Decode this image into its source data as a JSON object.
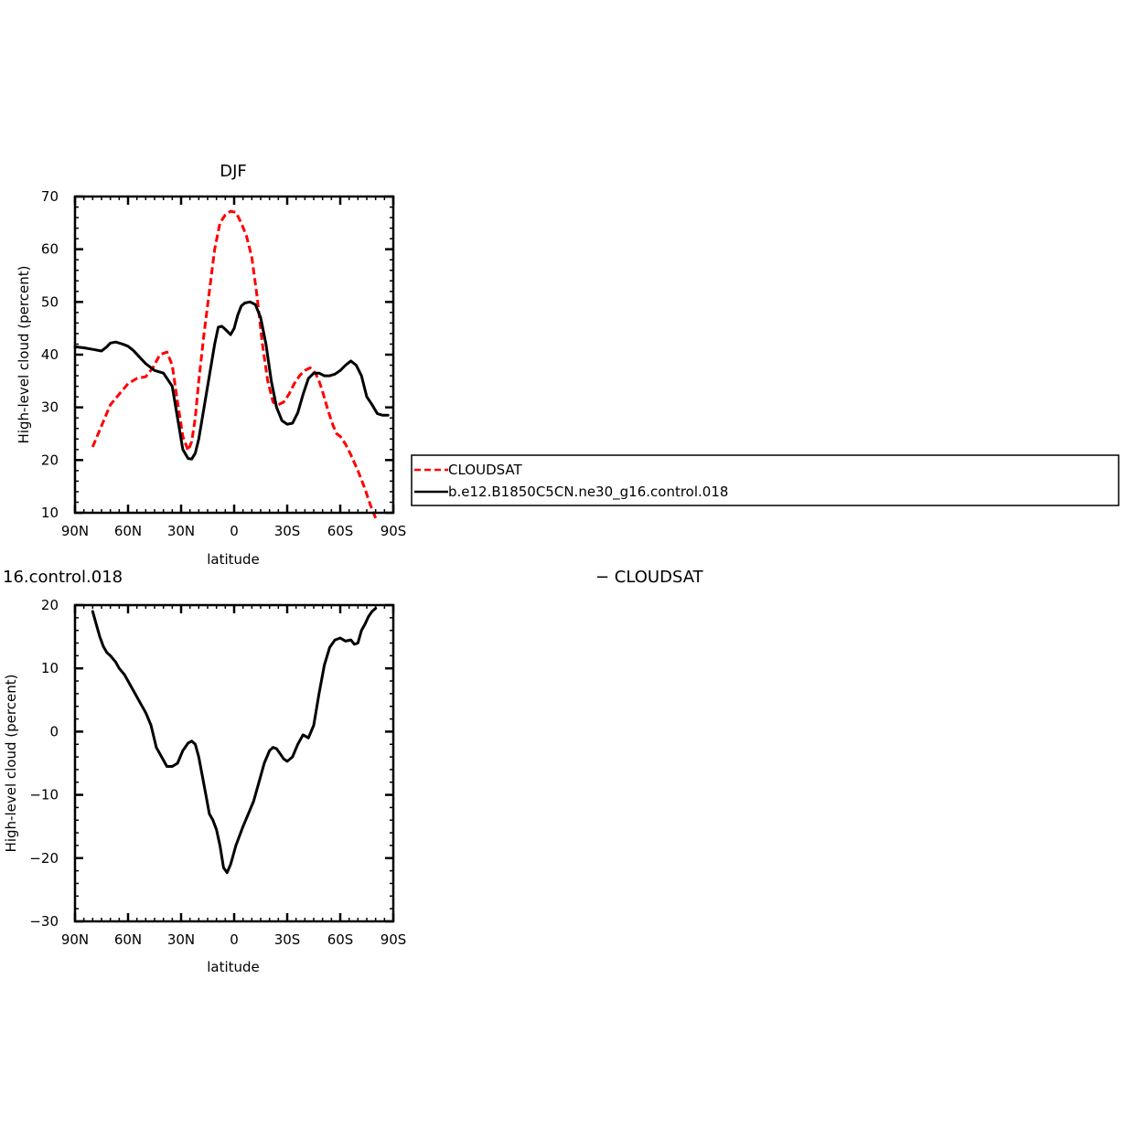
{
  "chart_data": [
    {
      "type": "line",
      "title": "DJF",
      "xlabel": "latitude",
      "ylabel": "High-level cloud (percent)",
      "xlim": [
        90,
        -90
      ],
      "ylim": [
        10,
        70
      ],
      "x_ticks": [
        90,
        60,
        30,
        0,
        -30,
        -60,
        -90
      ],
      "x_tick_labels": [
        "90N",
        "60N",
        "30N",
        "0",
        "30S",
        "60S",
        "90S"
      ],
      "y_ticks": [
        10,
        20,
        30,
        40,
        50,
        60,
        70
      ],
      "y_tick_labels": [
        "10",
        "20",
        "30",
        "40",
        "50",
        "60",
        "70"
      ],
      "grid": false,
      "legend": "right, boxed",
      "series": [
        {
          "name": "CLOUDSAT",
          "color": "#ff0000",
          "style": "dashed",
          "x": [
            80,
            75,
            70,
            65,
            60,
            55,
            50,
            46,
            42,
            38,
            35,
            32,
            29,
            26,
            24,
            22,
            20,
            17,
            14,
            11,
            8,
            5,
            2,
            -1,
            -4,
            -7,
            -10,
            -13,
            -16,
            -19,
            -22,
            -25,
            -28,
            -31,
            -34,
            -37,
            -40,
            -43,
            -46,
            -48,
            -50,
            -53,
            -56,
            -58,
            -60,
            -63,
            -66,
            -70,
            -74,
            -77,
            -80
          ],
          "y": [
            22.5,
            26.5,
            30.5,
            32.5,
            34.5,
            35.5,
            35.8,
            37.5,
            40.0,
            40.5,
            38.0,
            31.0,
            24.5,
            21.8,
            23.5,
            28.0,
            35.0,
            44.0,
            52.0,
            60.0,
            65.0,
            66.5,
            67.2,
            67.0,
            65.0,
            62.5,
            58.5,
            51.0,
            42.0,
            35.0,
            31.0,
            30.5,
            31.0,
            32.5,
            34.5,
            36.0,
            37.0,
            37.5,
            36.5,
            35.0,
            33.0,
            29.5,
            26.5,
            25.0,
            24.5,
            23.0,
            21.0,
            18.0,
            14.5,
            11.5,
            9.0
          ]
        },
        {
          "name": "b.e12.B1850C5CN.ne30_g16.control.018",
          "color": "#000000",
          "style": "solid",
          "x": [
            90,
            85,
            80,
            75,
            72,
            70,
            67,
            63,
            60,
            57,
            54,
            50,
            45,
            40,
            35,
            32,
            29,
            26,
            24,
            22,
            20,
            17,
            14,
            11,
            9,
            7,
            5,
            2,
            0,
            -2,
            -4,
            -6,
            -9,
            -12,
            -15,
            -18,
            -21,
            -24,
            -27,
            -30,
            -33,
            -36,
            -39,
            -42,
            -45,
            -48,
            -51,
            -54,
            -57,
            -60,
            -63,
            -66,
            -69,
            -72,
            -75,
            -78,
            -81,
            -84,
            -87
          ],
          "y": [
            41.5,
            41.3,
            41.0,
            40.7,
            41.5,
            42.2,
            42.4,
            42.0,
            41.6,
            40.8,
            39.7,
            38.3,
            37.0,
            36.5,
            34.0,
            28.0,
            22.0,
            20.3,
            20.2,
            21.3,
            24.0,
            30.0,
            36.0,
            42.0,
            45.2,
            45.4,
            44.8,
            43.8,
            45.0,
            47.5,
            49.2,
            49.8,
            50.0,
            49.5,
            47.0,
            42.0,
            35.0,
            30.0,
            27.5,
            26.8,
            27.0,
            29.0,
            32.5,
            35.5,
            36.5,
            36.5,
            36.0,
            36.0,
            36.3,
            37.0,
            38.0,
            38.8,
            38.0,
            36.0,
            32.0,
            30.5,
            28.8,
            28.5,
            28.5
          ]
        }
      ]
    },
    {
      "type": "line",
      "title": "",
      "xlabel": "latitude",
      "ylabel": "High-level cloud (percent)",
      "xlim": [
        90,
        -90
      ],
      "ylim": [
        -30,
        20
      ],
      "x_ticks": [
        90,
        60,
        30,
        0,
        -30,
        -60,
        -90
      ],
      "x_tick_labels": [
        "90N",
        "60N",
        "30N",
        "0",
        "30S",
        "60S",
        "90S"
      ],
      "y_ticks": [
        -30,
        -20,
        -10,
        0,
        10,
        20
      ],
      "y_tick_labels": [
        "−30",
        "−20",
        "−10",
        "0",
        "10",
        "20"
      ],
      "grid": false,
      "series": [
        {
          "color": "#000000",
          "style": "solid",
          "x": [
            80,
            78,
            76,
            74,
            72,
            70,
            67,
            65,
            62,
            59,
            56,
            53,
            50,
            47,
            44,
            41,
            38,
            35,
            32,
            29,
            26,
            24,
            22,
            20,
            18,
            16,
            14,
            12,
            10,
            8,
            6,
            4,
            2,
            1,
            0,
            -1,
            -3,
            -5,
            -8,
            -11,
            -14,
            -17,
            -20,
            -22,
            -24,
            -26,
            -28,
            -30,
            -33,
            -36,
            -39,
            -42,
            -45,
            -48,
            -51,
            -54,
            -57,
            -60,
            -63,
            -66,
            -68,
            -70,
            -72,
            -74,
            -76,
            -78,
            -80
          ],
          "y": [
            19.0,
            17.0,
            15.0,
            13.5,
            12.5,
            12.0,
            11.0,
            10.0,
            9.0,
            7.5,
            6.0,
            4.5,
            3.0,
            1.0,
            -2.5,
            -4.0,
            -5.5,
            -5.5,
            -5.0,
            -3.0,
            -1.8,
            -1.5,
            -2.0,
            -4.0,
            -7.0,
            -10.0,
            -13.0,
            -14.0,
            -15.5,
            -18.0,
            -21.5,
            -22.3,
            -21.0,
            -20.0,
            -19.0,
            -18.0,
            -16.5,
            -15.0,
            -13.0,
            -11.0,
            -8.0,
            -5.0,
            -3.0,
            -2.5,
            -2.7,
            -3.5,
            -4.3,
            -4.7,
            -4.0,
            -2.0,
            -0.5,
            -1.0,
            1.0,
            6.0,
            10.5,
            13.3,
            14.5,
            14.8,
            14.3,
            14.5,
            13.8,
            14.0,
            16.0,
            17.0,
            18.2,
            19.0,
            19.5
          ]
        }
      ]
    }
  ],
  "overflow_left_label": "16.control.018",
  "overflow_right_label": "− CLOUDSAT"
}
